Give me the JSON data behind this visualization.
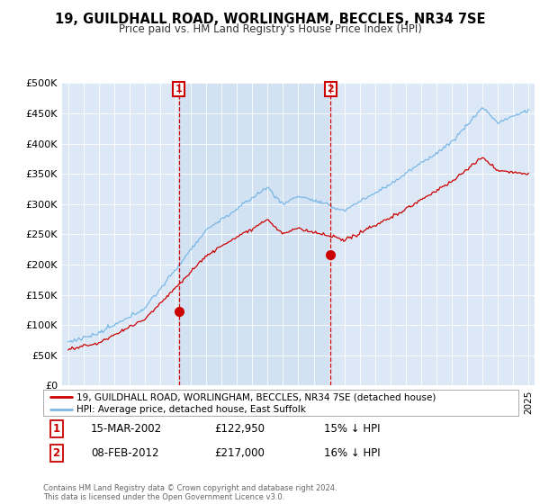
{
  "title": "19, GUILDHALL ROAD, WORLINGHAM, BECCLES, NR34 7SE",
  "subtitle": "Price paid vs. HM Land Registry's House Price Index (HPI)",
  "bg_color": "#dce8f5",
  "plot_bg_color": "#dce8f5",
  "shade_color": "#c5d8ee",
  "hpi_color": "#7ab8e8",
  "price_color": "#cc0000",
  "marker_color": "#cc0000",
  "vline_color": "#cc0000",
  "ylim": [
    0,
    500000
  ],
  "yticks": [
    0,
    50000,
    100000,
    150000,
    200000,
    250000,
    300000,
    350000,
    400000,
    450000,
    500000
  ],
  "ytick_labels": [
    "£0",
    "£50K",
    "£100K",
    "£150K",
    "£200K",
    "£250K",
    "£300K",
    "£350K",
    "£400K",
    "£450K",
    "£500K"
  ],
  "transaction1_date": "15-MAR-2002",
  "transaction1_price": 122950,
  "transaction1_label": "£122,950",
  "transaction1_hpi": "15% ↓ HPI",
  "transaction1_x": 2002.2,
  "transaction2_date": "08-FEB-2012",
  "transaction2_price": 217000,
  "transaction2_label": "£217,000",
  "transaction2_hpi": "16% ↓ HPI",
  "transaction2_x": 2012.1,
  "legend_line1": "19, GUILDHALL ROAD, WORLINGHAM, BECCLES, NR34 7SE (detached house)",
  "legend_line2": "HPI: Average price, detached house, East Suffolk",
  "footer": "Contains HM Land Registry data © Crown copyright and database right 2024.\nThis data is licensed under the Open Government Licence v3.0.",
  "xmin": 1995,
  "xmax": 2025
}
